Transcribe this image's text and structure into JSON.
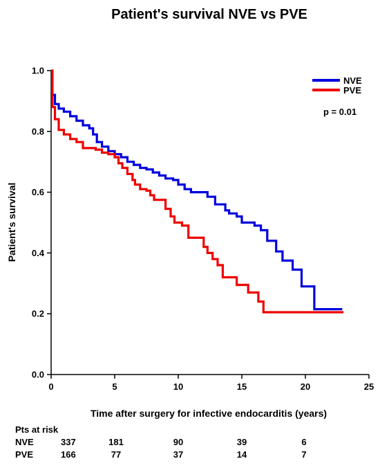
{
  "chart_data": {
    "type": "line",
    "title": "Patient's survival NVE vs PVE",
    "xlabel": "Time after surgery for infective endocarditis (years)",
    "ylabel": "Patient's survival",
    "xlim": [
      0,
      25
    ],
    "ylim": [
      0.0,
      1.0
    ],
    "xticks": [
      "0",
      "5",
      "10",
      "15",
      "20",
      "25"
    ],
    "yticks": [
      "0.0",
      "0.2",
      "0.4",
      "0.6",
      "0.8",
      "1.0"
    ],
    "legend_position": "top-right",
    "grid": false,
    "annotation": "p = 0.01",
    "series": [
      {
        "name": "NVE",
        "color": "#0000dd",
        "points": [
          [
            0,
            1.0
          ],
          [
            0.1,
            0.92
          ],
          [
            0.3,
            0.89
          ],
          [
            0.6,
            0.875
          ],
          [
            1.0,
            0.865
          ],
          [
            1.5,
            0.85
          ],
          [
            2.0,
            0.835
          ],
          [
            2.5,
            0.82
          ],
          [
            3.0,
            0.81
          ],
          [
            3.3,
            0.79
          ],
          [
            3.6,
            0.765
          ],
          [
            4.0,
            0.75
          ],
          [
            4.5,
            0.735
          ],
          [
            5.0,
            0.725
          ],
          [
            5.5,
            0.715
          ],
          [
            6.0,
            0.7
          ],
          [
            6.5,
            0.69
          ],
          [
            7.0,
            0.68
          ],
          [
            7.5,
            0.675
          ],
          [
            8.0,
            0.665
          ],
          [
            8.5,
            0.655
          ],
          [
            9.0,
            0.645
          ],
          [
            9.6,
            0.64
          ],
          [
            10.0,
            0.625
          ],
          [
            10.5,
            0.61
          ],
          [
            11.0,
            0.6
          ],
          [
            12.0,
            0.6
          ],
          [
            12.3,
            0.585
          ],
          [
            12.8,
            0.585
          ],
          [
            12.9,
            0.56
          ],
          [
            13.6,
            0.56
          ],
          [
            13.7,
            0.54
          ],
          [
            14.0,
            0.53
          ],
          [
            14.6,
            0.52
          ],
          [
            15.0,
            0.5
          ],
          [
            16.0,
            0.49
          ],
          [
            16.5,
            0.475
          ],
          [
            17.0,
            0.44
          ],
          [
            17.7,
            0.405
          ],
          [
            18.2,
            0.375
          ],
          [
            19.0,
            0.345
          ],
          [
            19.7,
            0.29
          ],
          [
            20.7,
            0.215
          ],
          [
            22.9,
            0.215
          ]
        ]
      },
      {
        "name": "PVE",
        "color": "#ee0000",
        "points": [
          [
            0,
            1.0
          ],
          [
            0.1,
            0.88
          ],
          [
            0.3,
            0.84
          ],
          [
            0.6,
            0.805
          ],
          [
            1.0,
            0.79
          ],
          [
            1.5,
            0.775
          ],
          [
            2.0,
            0.765
          ],
          [
            2.5,
            0.745
          ],
          [
            3.5,
            0.74
          ],
          [
            4.0,
            0.73
          ],
          [
            4.5,
            0.725
          ],
          [
            5.0,
            0.715
          ],
          [
            5.3,
            0.695
          ],
          [
            5.6,
            0.68
          ],
          [
            6.0,
            0.66
          ],
          [
            6.4,
            0.64
          ],
          [
            6.6,
            0.625
          ],
          [
            7.0,
            0.61
          ],
          [
            7.5,
            0.605
          ],
          [
            7.8,
            0.59
          ],
          [
            8.1,
            0.575
          ],
          [
            8.7,
            0.575
          ],
          [
            9.0,
            0.545
          ],
          [
            9.4,
            0.52
          ],
          [
            9.7,
            0.5
          ],
          [
            10.3,
            0.49
          ],
          [
            10.8,
            0.45
          ],
          [
            11.9,
            0.45
          ],
          [
            12.0,
            0.42
          ],
          [
            12.3,
            0.4
          ],
          [
            12.7,
            0.38
          ],
          [
            13.1,
            0.36
          ],
          [
            13.5,
            0.32
          ],
          [
            14.0,
            0.32
          ],
          [
            14.6,
            0.295
          ],
          [
            15.5,
            0.27
          ],
          [
            16.3,
            0.24
          ],
          [
            16.7,
            0.205
          ],
          [
            23.0,
            0.205
          ]
        ]
      }
    ],
    "at_risk": {
      "header": "Pts at risk",
      "rows": [
        {
          "label": "NVE",
          "values": [
            "337",
            "181",
            "90",
            "39",
            "6"
          ]
        },
        {
          "label": "PVE",
          "values": [
            "166",
            "77",
            "37",
            "14",
            "7"
          ]
        }
      ]
    }
  }
}
